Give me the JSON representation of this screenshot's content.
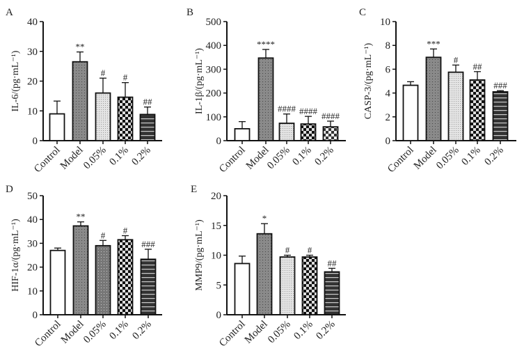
{
  "chart_data": [
    {
      "type": "bar",
      "panel": "A",
      "ylabel": "IL-6/(pg·mL⁻¹)",
      "ylim": [
        0,
        40
      ],
      "yticks": [
        0,
        10,
        20,
        30,
        40
      ],
      "categories": [
        "Control",
        "Model",
        "0.05%",
        "0.1%",
        "0.2%"
      ],
      "values": [
        9,
        26.5,
        16,
        14.6,
        8.8
      ],
      "errors": [
        4.3,
        3.3,
        5,
        4.9,
        2.5
      ],
      "marks": [
        "",
        "**",
        "#",
        "#",
        "##"
      ]
    },
    {
      "type": "bar",
      "panel": "B",
      "ylabel": "IL-1β/(pg·mL⁻¹)",
      "ylim": [
        0,
        500
      ],
      "yticks": [
        0,
        100,
        200,
        300,
        400,
        500
      ],
      "categories": [
        "Control",
        "Model",
        "0.05%",
        "0.1%",
        "0.2%"
      ],
      "values": [
        50,
        347,
        73,
        70,
        58
      ],
      "errors": [
        30,
        36,
        39,
        32,
        24
      ],
      "marks": [
        "",
        "****",
        "####",
        "####",
        "####"
      ]
    },
    {
      "type": "bar",
      "panel": "C",
      "ylabel": "CASP-3/(pg·mL⁻¹)",
      "ylim": [
        0,
        10
      ],
      "yticks": [
        0,
        2,
        4,
        6,
        8,
        10
      ],
      "categories": [
        "Control",
        "Model",
        "0.05%",
        "0.1%",
        "0.2%"
      ],
      "values": [
        4.65,
        7.0,
        5.75,
        5.1,
        4.1
      ],
      "errors": [
        0.3,
        0.7,
        0.6,
        0.7,
        0.1
      ],
      "marks": [
        "",
        "***",
        "#",
        "##",
        "###"
      ]
    },
    {
      "type": "bar",
      "panel": "D",
      "ylabel": "HIF-1α/(pg·mL⁻¹)",
      "ylim": [
        0,
        50
      ],
      "yticks": [
        0,
        10,
        20,
        30,
        40,
        50
      ],
      "categories": [
        "Control",
        "Model",
        "0.05%",
        "0.1%",
        "0.2%"
      ],
      "values": [
        27,
        37.3,
        29,
        31.5,
        23.3
      ],
      "errors": [
        1,
        1.7,
        2.2,
        1.7,
        4.2
      ],
      "marks": [
        "",
        "**",
        "#",
        "#",
        "###"
      ]
    },
    {
      "type": "bar",
      "panel": "E",
      "ylabel": "MMP9/(pg·mL⁻¹)",
      "ylim": [
        0,
        20
      ],
      "yticks": [
        0,
        5,
        10,
        15,
        20
      ],
      "categories": [
        "Control",
        "Model",
        "0.05%",
        "0.1%",
        "0.2%"
      ],
      "values": [
        8.6,
        13.6,
        9.7,
        9.7,
        7.2
      ],
      "errors": [
        1.25,
        1.7,
        0.3,
        0.3,
        0.6
      ],
      "marks": [
        "",
        "*",
        "#",
        "#",
        "##"
      ]
    }
  ]
}
